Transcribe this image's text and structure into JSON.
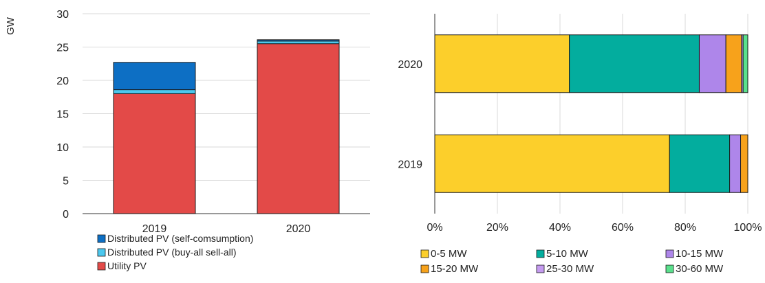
{
  "chart_data": [
    {
      "type": "bar",
      "stacked": true,
      "ylabel": "GW",
      "ylim": [
        0,
        30
      ],
      "yticks": [
        "0",
        "5",
        "10",
        "15",
        "20",
        "25",
        "30"
      ],
      "grid": true,
      "legend_position": "bottom-left",
      "categories": [
        "2019",
        "2020"
      ],
      "series": [
        {
          "name": "Utility PV",
          "color": "#e34a48",
          "values": [
            18.0,
            25.5
          ]
        },
        {
          "name": "Distributed PV (buy-all sell-all)",
          "color": "#4cc8ee",
          "values": [
            0.6,
            0.4
          ]
        },
        {
          "name": "Distributed PV (self-comsumption)",
          "color": "#0d6fc4",
          "values": [
            4.1,
            0.2
          ]
        }
      ],
      "legend_order": [
        "Distributed PV (self-comsumption)",
        "Distributed PV (buy-all sell-all)",
        "Utility PV"
      ]
    },
    {
      "type": "bar",
      "orientation": "horizontal",
      "stacked": true,
      "percent": true,
      "xlim": [
        0,
        100
      ],
      "xticks": [
        "0%",
        "20%",
        "40%",
        "60%",
        "80%",
        "100%"
      ],
      "grid": true,
      "legend_position": "bottom",
      "categories": [
        "2020",
        "2019"
      ],
      "series": [
        {
          "name": "0-5 MW",
          "color": "#fccf2b",
          "values": [
            43,
            75
          ]
        },
        {
          "name": "5-10 MW",
          "color": "#03ad9e",
          "values": [
            41.5,
            19.2
          ]
        },
        {
          "name": "10-15 MW",
          "color": "#ae86ea",
          "values": [
            8.5,
            3.5
          ]
        },
        {
          "name": "15-20 MW",
          "color": "#f7a21b",
          "values": [
            5,
            2.3
          ]
        },
        {
          "name": "25-30 MW",
          "color": "#c59bf0",
          "values": [
            0.5,
            0
          ]
        },
        {
          "name": "30-60 MW",
          "color": "#5ae08c",
          "values": [
            1.5,
            0
          ]
        }
      ]
    }
  ]
}
